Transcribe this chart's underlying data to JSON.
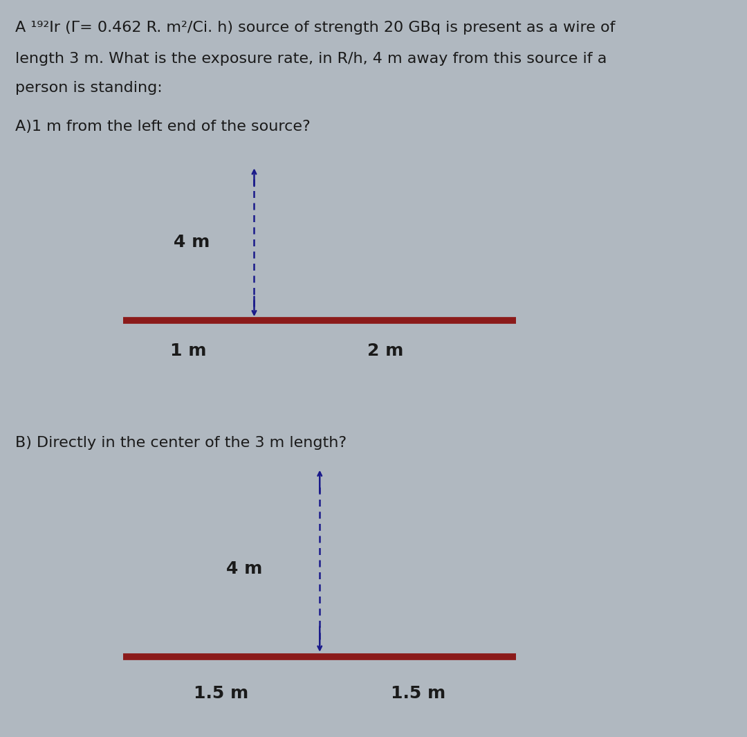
{
  "bg_color": "#b0b8c0",
  "box_color": "#d8d0c4",
  "wire_color": "#8b1a1a",
  "arrow_color": "#1a1a8a",
  "text_color_dark": "#1a1a1a",
  "title_lines": [
    "A ¹⁹²Ir (Γ= 0.462 R. m²/Ci. h) source of strength 20 GBq is present as a wire of",
    "length 3 m. What is the exposure rate, in R/h, 4 m away from this source if a",
    "person is standing:"
  ],
  "part_a_label": "A)1 m from the left end of the source?",
  "part_b_label": "B) Directly in the center of the 3 m length?",
  "label_4m": "4 m",
  "label_1m": "1 m",
  "label_2m": "2 m",
  "label_1_5m_left": "1.5 m",
  "label_1_5m_right": "1.5 m",
  "wire_linewidth": 7,
  "arrow_linewidth": 1.8,
  "title_fontsize": 16,
  "label_fontsize": 18
}
